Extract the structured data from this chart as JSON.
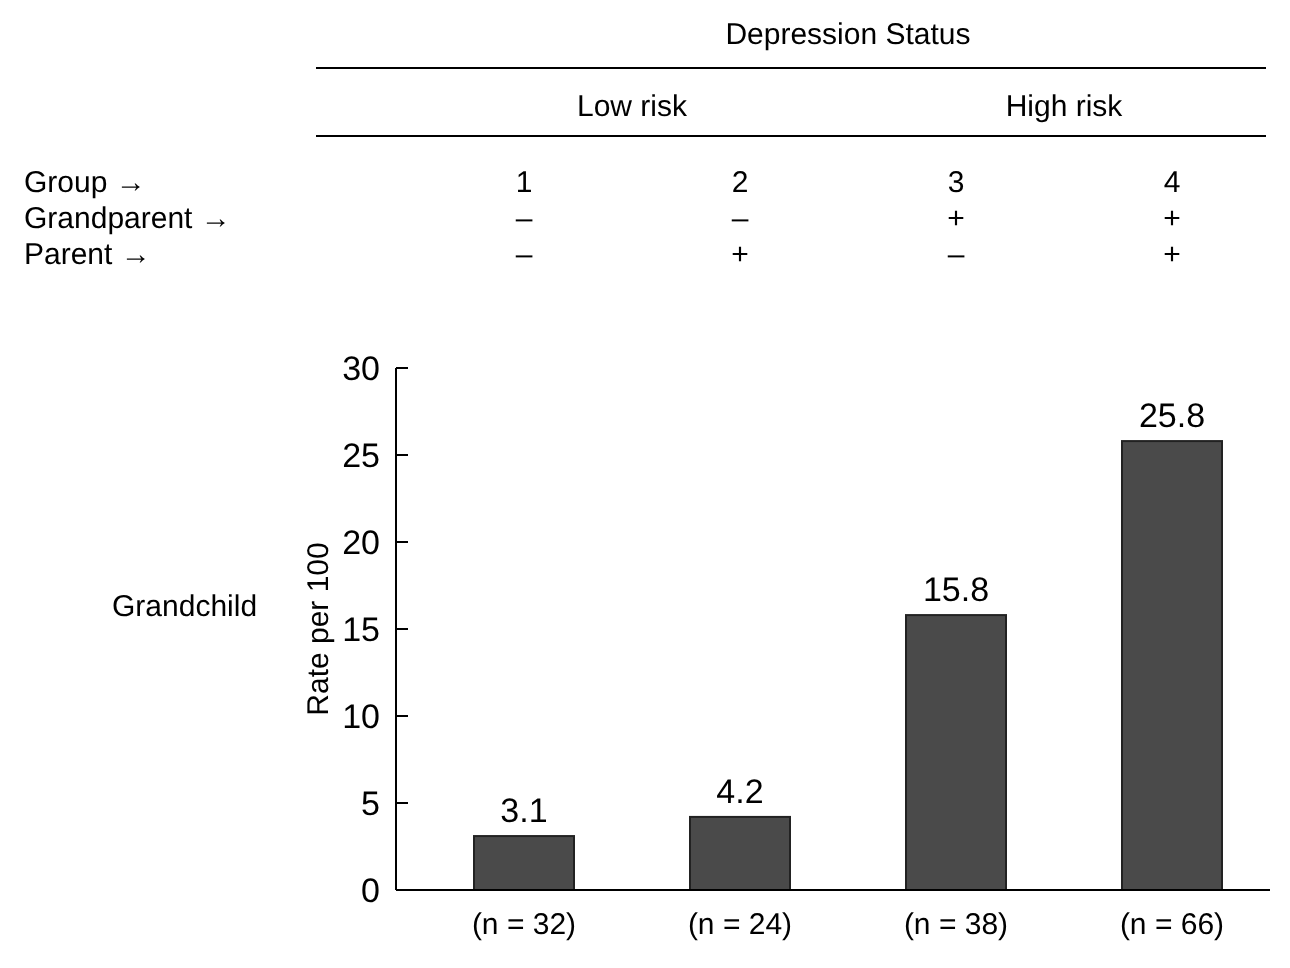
{
  "chart_data": {
    "type": "bar",
    "ylabel": "Rate per 100",
    "categories": [
      "(n = 32)",
      "(n = 24)",
      "(n = 38)",
      "(n = 66)"
    ],
    "values": [
      3.1,
      4.2,
      15.8,
      25.8
    ],
    "color": "#4a4a4a",
    "ylim": [
      0,
      30
    ],
    "yticks": [
      0,
      5,
      10,
      15,
      20,
      25,
      30
    ],
    "data_labels": true,
    "grid": false,
    "annotations": [
      "Depression Status",
      "Low risk",
      "High risk",
      "Group →",
      "Grandparent →",
      "Parent →",
      "Grandchild",
      "1",
      "2",
      "3",
      "4",
      "–",
      "–",
      "+",
      "+",
      "–",
      "+",
      "–",
      "+"
    ]
  }
}
